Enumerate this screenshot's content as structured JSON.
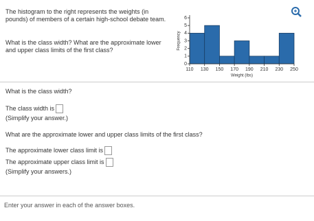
{
  "problem": "The histogram to the right represents the weights (in pounds) of members of a certain high-school debate team.",
  "question": "What is the class width? What are the approximate lower and upper class limits of the first class?",
  "chart_data": {
    "type": "histogram",
    "xlabel": "Weight (lbs)",
    "ylabel": "Frequency",
    "bins": [
      110,
      130,
      150,
      170,
      190,
      210,
      230,
      250
    ],
    "values": [
      4,
      5,
      1,
      3,
      1,
      1,
      4
    ],
    "color": "#2a6bab",
    "xlim": [
      110,
      250
    ],
    "xticks": [
      110,
      130,
      150,
      170,
      190,
      210,
      230,
      250
    ],
    "ylim": [
      0,
      6
    ],
    "yticks": [
      0,
      1,
      2,
      3,
      4,
      5,
      6
    ]
  },
  "part1": {
    "question": "What is the class width?",
    "prompt": "The class width is",
    "hint": "(Simplify your answer.)"
  },
  "part2": {
    "question": "What are the approximate lower and upper class limits of the first class?",
    "lower": "The approximate lower class limit is",
    "upper": "The approximate upper class limit is",
    "hint": "(Simplify your answers.)"
  },
  "footer": "Enter your answer in each of the answer boxes."
}
